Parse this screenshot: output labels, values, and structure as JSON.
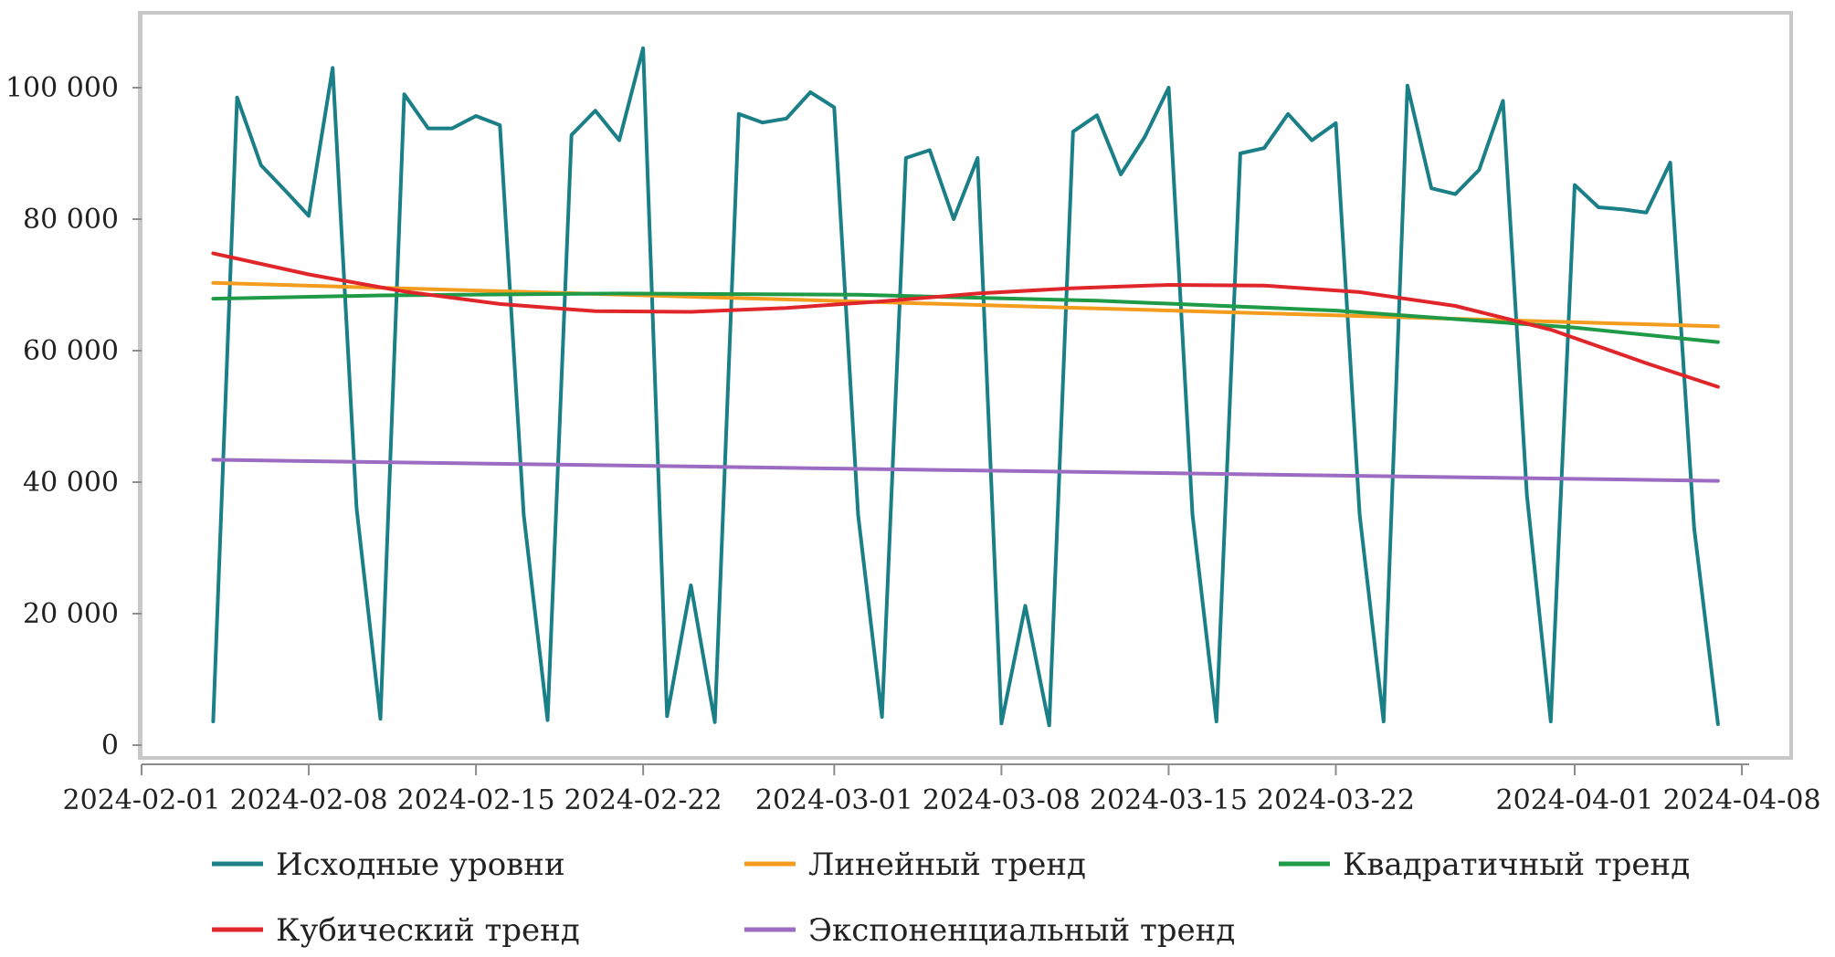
{
  "chart_data": {
    "type": "line",
    "title": "",
    "xlabel": "",
    "ylabel": "",
    "ylim": [
      0,
      110000
    ],
    "grid": false,
    "legend_position": "bottom",
    "y_ticks": [
      {
        "value": 0,
        "label": "0"
      },
      {
        "value": 20000,
        "label": "20 000"
      },
      {
        "value": 40000,
        "label": "40 000"
      },
      {
        "value": 60000,
        "label": "60 000"
      },
      {
        "value": 80000,
        "label": "80 000"
      },
      {
        "value": 100000,
        "label": "100 000"
      }
    ],
    "x_ticks": [
      {
        "value": 0,
        "label": "2024-02-01"
      },
      {
        "value": 7,
        "label": "2024-02-08"
      },
      {
        "value": 14,
        "label": "2024-02-15"
      },
      {
        "value": 21,
        "label": "2024-02-22"
      },
      {
        "value": 29,
        "label": "2024-03-01"
      },
      {
        "value": 36,
        "label": "2024-03-08"
      },
      {
        "value": 43,
        "label": "2024-03-15"
      },
      {
        "value": 50,
        "label": "2024-03-22"
      },
      {
        "value": 60,
        "label": "2024-04-01"
      },
      {
        "value": 67,
        "label": "2024-04-08"
      }
    ],
    "series": [
      {
        "name": "Исходные уровни",
        "color": "#1a7f86",
        "x": [
          3,
          4,
          5,
          6,
          7,
          8,
          9,
          10,
          11,
          12,
          13,
          14,
          15,
          16,
          17,
          18,
          19,
          20,
          21,
          22,
          23,
          24,
          25,
          26,
          27,
          28,
          29,
          30,
          31,
          32,
          33,
          34,
          35,
          36,
          37,
          38,
          39,
          40,
          41,
          42,
          43,
          44,
          45,
          46,
          47,
          48,
          49,
          50,
          51,
          52,
          53,
          54,
          55,
          56,
          57,
          58,
          59,
          60,
          61,
          62,
          63,
          64,
          65,
          66
        ],
        "values": [
          3600,
          98500,
          88200,
          84400,
          80500,
          103000,
          36000,
          4000,
          99000,
          93800,
          93800,
          95700,
          94300,
          35000,
          3800,
          92800,
          96500,
          92000,
          106000,
          4400,
          24300,
          3500,
          96000,
          94700,
          95300,
          99300,
          97000,
          35000,
          4300,
          89300,
          90500,
          80000,
          89300,
          3300,
          21200,
          3000,
          93300,
          95800,
          86800,
          92500,
          100000,
          35000,
          3600,
          90000,
          90800,
          96000,
          92000,
          94600,
          35000,
          3600,
          100300,
          84700,
          83800,
          87500,
          98000,
          38000,
          3600,
          85200,
          81800,
          81500,
          81000,
          88600,
          33000,
          3200
        ]
      },
      {
        "name": "Линейный тренд",
        "color": "#f39c1e",
        "x": [
          3,
          66
        ],
        "values": [
          70300,
          63700
        ]
      },
      {
        "name": "Квадратичный тренд",
        "color": "#1f9a47",
        "x": [
          3,
          10,
          20,
          30,
          40,
          50,
          60,
          66
        ],
        "values": [
          67900,
          68400,
          68700,
          68500,
          67600,
          66100,
          63500,
          61300
        ]
      },
      {
        "name": "Кубический тренд",
        "color": "#e0262a",
        "x": [
          3,
          7,
          11,
          15,
          19,
          23,
          27,
          31,
          35,
          39,
          43,
          47,
          51,
          55,
          59,
          63,
          66
        ],
        "values": [
          74800,
          71600,
          69000,
          67100,
          66000,
          65900,
          66500,
          67500,
          68700,
          69500,
          70000,
          69900,
          68900,
          66800,
          63200,
          58100,
          54500
        ]
      },
      {
        "name": "Экспоненциальный тренд",
        "color": "#9b6cc1",
        "x": [
          3,
          66
        ],
        "values": [
          43400,
          40200
        ]
      }
    ]
  }
}
